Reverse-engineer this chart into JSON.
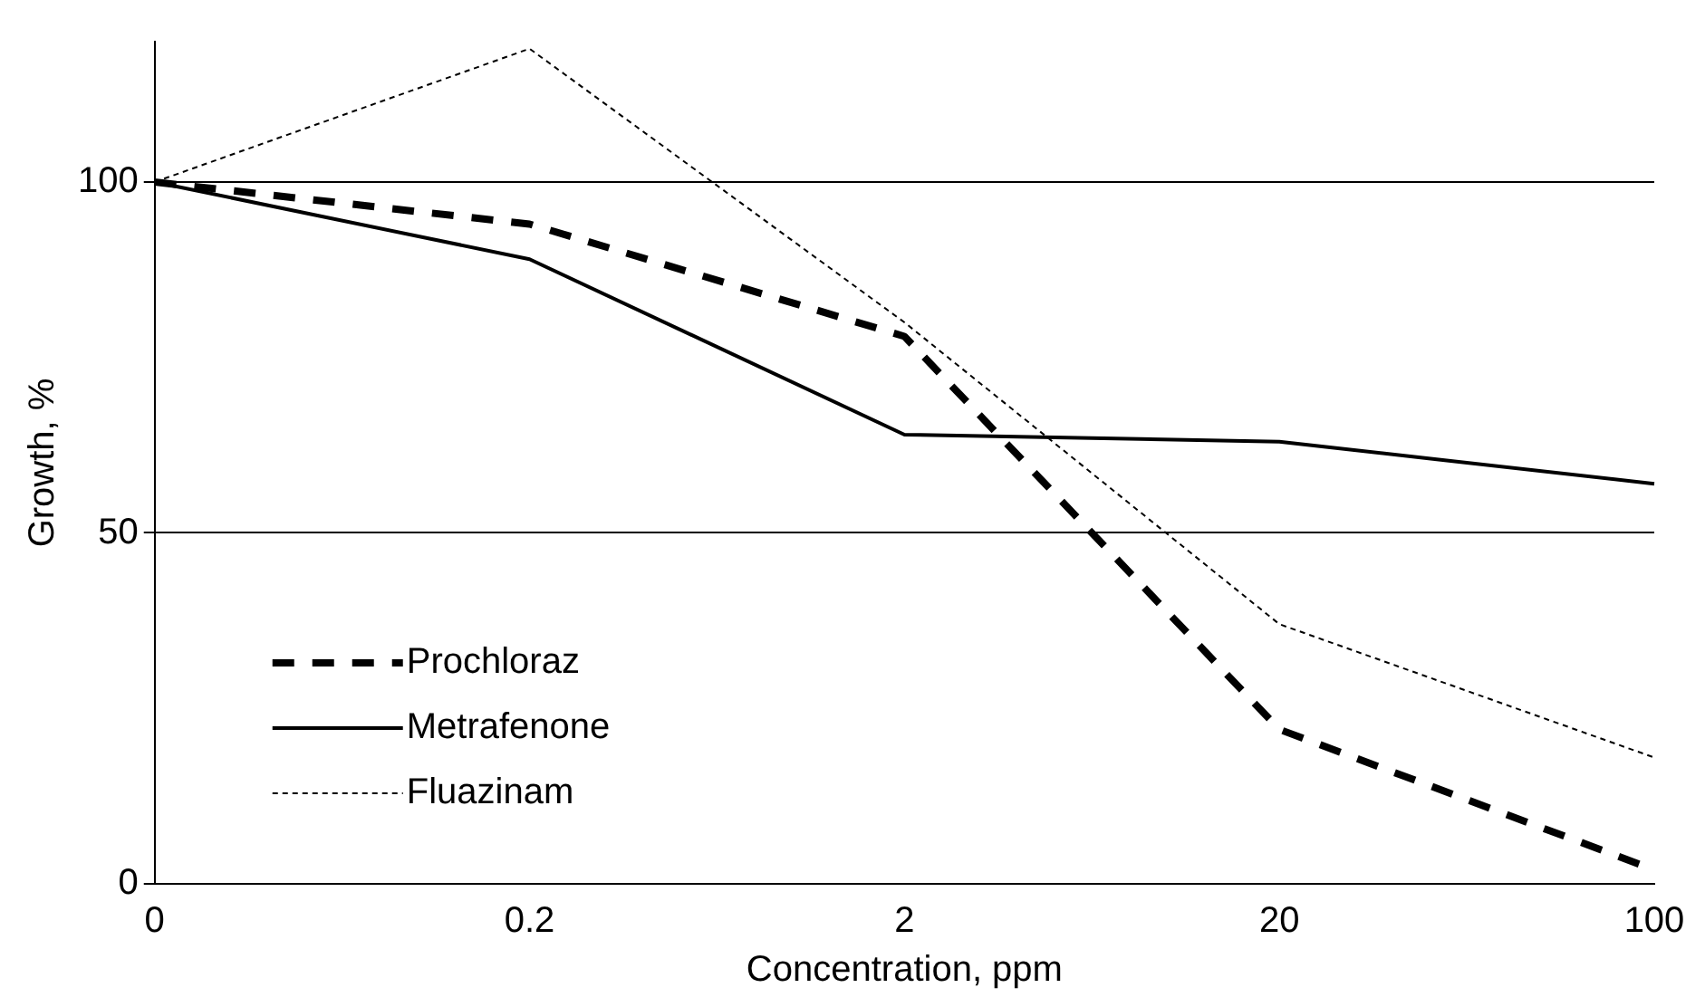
{
  "chart_data": {
    "type": "line",
    "xlabel": "Concentration, ppm",
    "ylabel": "Growth, %",
    "categories": [
      "0",
      "0.2",
      "2",
      "20",
      "100"
    ],
    "ylim": [
      0,
      120
    ],
    "yticks": [
      0,
      50,
      100
    ],
    "grid": "y",
    "legend": "bottom left",
    "marker": "none",
    "series": [
      {
        "name": "Prochloraz",
        "color": "#000000",
        "line_style": "dashed",
        "values": [
          100,
          94,
          78,
          22,
          2
        ]
      },
      {
        "name": "Metrafenone",
        "color": "#000000",
        "line_style": "solid",
        "values": [
          100,
          89,
          64,
          63,
          57
        ]
      },
      {
        "name": "Fluazinam",
        "color": "#000000",
        "line_style": "dashed",
        "values": [
          100,
          119,
          80,
          37,
          18
        ]
      }
    ]
  }
}
